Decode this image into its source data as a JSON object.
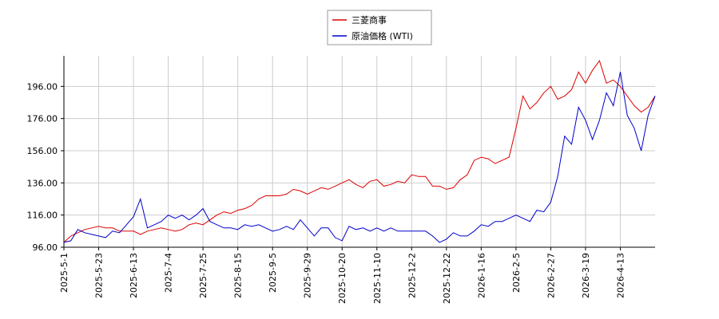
{
  "chart_data": {
    "type": "line",
    "categories": [
      "2025-5-1",
      null,
      null,
      null,
      null,
      "2025-5-23",
      null,
      null,
      null,
      null,
      "2025-6-13",
      null,
      null,
      null,
      null,
      "2025-7-4",
      null,
      null,
      null,
      null,
      "2025-7-25",
      null,
      null,
      null,
      null,
      "2025-8-15",
      null,
      null,
      null,
      null,
      "2025-9-5",
      null,
      null,
      null,
      null,
      "2025-9-29",
      null,
      null,
      null,
      null,
      "2025-10-20",
      null,
      null,
      null,
      null,
      "2025-11-10",
      null,
      null,
      null,
      null,
      "2025-12-2",
      null,
      null,
      null,
      null,
      "2025-12-22",
      null,
      null,
      null,
      null,
      "2026-1-16",
      null,
      null,
      null,
      null,
      "2026-2-5",
      null,
      null,
      null,
      null,
      "2026-2-27",
      null,
      null,
      null,
      null,
      "2026-3-19",
      null,
      null,
      null,
      null,
      "2026-4-13",
      null,
      null,
      null,
      null,
      null
    ],
    "series": [
      {
        "name": "三菱商事",
        "color": "#dd0000",
        "values": [
          99,
          103,
          105,
          107,
          108,
          109,
          108,
          108,
          106,
          106,
          106,
          104,
          106,
          107,
          108,
          107,
          106,
          107,
          110,
          111,
          110,
          113,
          116,
          118,
          117,
          119,
          120,
          122,
          126,
          128,
          128,
          128,
          129,
          132,
          131,
          129,
          131,
          133,
          132,
          134,
          136,
          138,
          135,
          133,
          137,
          138,
          134,
          135,
          137,
          136,
          141,
          140,
          140,
          134,
          134,
          132,
          133,
          138,
          141,
          150,
          152,
          151,
          148,
          150,
          152,
          170,
          190,
          182,
          186,
          192,
          196,
          188,
          190,
          194,
          205,
          198,
          206,
          212,
          198,
          200,
          196,
          190,
          184,
          180,
          183,
          190
        ]
      },
      {
        "name": "原油価格 (WTI)",
        "color": "#0000cc",
        "values": [
          99,
          100,
          107,
          105,
          104,
          103,
          102,
          106,
          105,
          110,
          115,
          126,
          108,
          110,
          112,
          116,
          114,
          116,
          113,
          116,
          120,
          112,
          110,
          108,
          108,
          107,
          110,
          109,
          110,
          108,
          106,
          107,
          109,
          107,
          113,
          108,
          103,
          108,
          108,
          102,
          100,
          109,
          107,
          108,
          106,
          108,
          106,
          108,
          106,
          106,
          106,
          106,
          106,
          103,
          99,
          101,
          105,
          103,
          103,
          106,
          110,
          109,
          112,
          112,
          114,
          116,
          114,
          112,
          119,
          118,
          124,
          140,
          165,
          160,
          183,
          175,
          163,
          175,
          192,
          184,
          205,
          178,
          170,
          156,
          178,
          190
        ]
      }
    ],
    "ylim": [
      96,
      215
    ],
    "yticks": [
      {
        "value": 96,
        "label": "96.00"
      },
      {
        "value": 116,
        "label": "116.00"
      },
      {
        "value": 136,
        "label": "136.00"
      },
      {
        "value": 156,
        "label": "156.00"
      },
      {
        "value": 176,
        "label": "176.00"
      },
      {
        "value": 196,
        "label": "196.00"
      }
    ],
    "grid": true,
    "legend": "top"
  }
}
